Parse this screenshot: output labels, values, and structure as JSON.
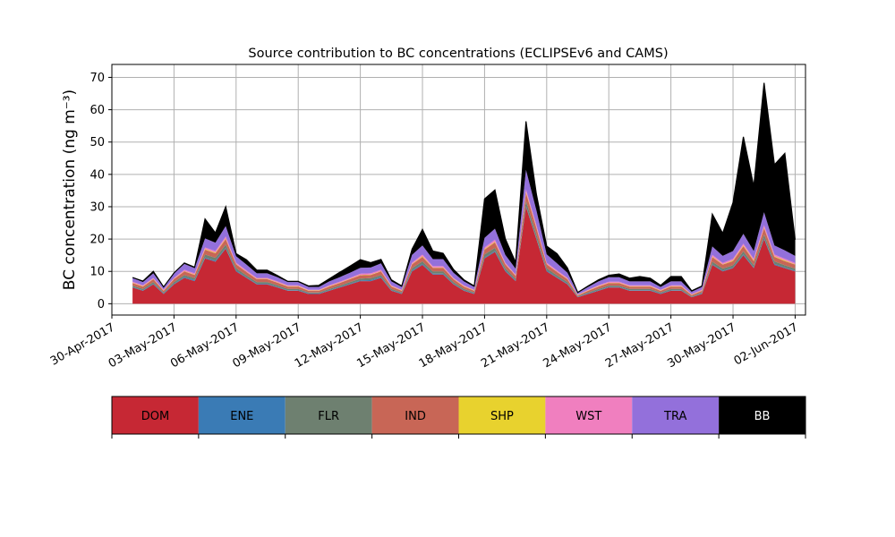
{
  "chart_data": {
    "type": "area",
    "title": "Source contribution to BC concentrations (ECLIPSEv6 and CAMS)",
    "ylabel": "BC concentration (ng m⁻³)",
    "xlabel": "",
    "ylim": [
      -3.5,
      74
    ],
    "xlim": [
      "2017-04-30T00:00",
      "2017-06-02T12:00"
    ],
    "grid": true,
    "stacked": true,
    "yticks": [
      0,
      10,
      20,
      30,
      40,
      50,
      60,
      70
    ],
    "xticks": [
      "30-Apr-2017",
      "03-May-2017",
      "06-May-2017",
      "09-May-2017",
      "12-May-2017",
      "15-May-2017",
      "18-May-2017",
      "21-May-2017",
      "24-May-2017",
      "27-May-2017",
      "30-May-2017",
      "02-Jun-2017"
    ],
    "x": [
      "2017-05-01T00:00",
      "2017-05-01T12:00",
      "2017-05-02T00:00",
      "2017-05-02T12:00",
      "2017-05-03T00:00",
      "2017-05-03T12:00",
      "2017-05-04T00:00",
      "2017-05-04T12:00",
      "2017-05-05T00:00",
      "2017-05-05T12:00",
      "2017-05-06T00:00",
      "2017-05-06T12:00",
      "2017-05-07T00:00",
      "2017-05-07T12:00",
      "2017-05-08T00:00",
      "2017-05-08T12:00",
      "2017-05-09T00:00",
      "2017-05-09T12:00",
      "2017-05-10T00:00",
      "2017-05-10T12:00",
      "2017-05-11T00:00",
      "2017-05-11T12:00",
      "2017-05-12T00:00",
      "2017-05-12T12:00",
      "2017-05-13T00:00",
      "2017-05-13T12:00",
      "2017-05-14T00:00",
      "2017-05-14T12:00",
      "2017-05-15T00:00",
      "2017-05-15T12:00",
      "2017-05-16T00:00",
      "2017-05-16T12:00",
      "2017-05-17T00:00",
      "2017-05-17T12:00",
      "2017-05-18T00:00",
      "2017-05-18T12:00",
      "2017-05-19T00:00",
      "2017-05-19T12:00",
      "2017-05-20T00:00",
      "2017-05-20T12:00",
      "2017-05-21T00:00",
      "2017-05-21T12:00",
      "2017-05-22T00:00",
      "2017-05-22T12:00",
      "2017-05-23T00:00",
      "2017-05-23T12:00",
      "2017-05-24T00:00",
      "2017-05-24T12:00",
      "2017-05-25T00:00",
      "2017-05-25T12:00",
      "2017-05-26T00:00",
      "2017-05-26T12:00",
      "2017-05-27T00:00",
      "2017-05-27T12:00",
      "2017-05-28T00:00",
      "2017-05-28T12:00",
      "2017-05-29T00:00",
      "2017-05-29T12:00",
      "2017-05-30T00:00",
      "2017-05-30T12:00",
      "2017-05-31T00:00",
      "2017-05-31T12:00",
      "2017-06-01T00:00",
      "2017-06-01T12:00",
      "2017-06-02T00:00"
    ],
    "series": [
      {
        "name": "DOM",
        "color": "#c62834",
        "values": [
          5,
          4,
          6,
          3,
          6,
          8,
          7,
          14,
          13,
          17,
          10,
          8,
          6,
          6,
          5,
          4,
          4,
          3,
          3,
          4,
          5,
          6,
          7,
          7,
          8,
          4,
          3,
          10,
          12,
          9,
          9,
          6,
          4,
          3,
          14,
          16,
          10,
          7,
          30,
          20,
          10,
          8,
          6,
          2,
          3,
          4,
          5,
          5,
          4,
          4,
          4,
          3,
          4,
          4,
          2,
          3,
          12,
          10,
          11,
          15,
          11,
          20,
          12,
          11,
          10
        ]
      },
      {
        "name": "ENE",
        "color": "#3a7bb5",
        "values": [
          0.2,
          0.2,
          0.2,
          0.2,
          0.2,
          0.3,
          0.3,
          0.3,
          0.3,
          0.3,
          0.3,
          0.2,
          0.2,
          0.2,
          0.2,
          0.2,
          0.2,
          0.2,
          0.2,
          0.2,
          0.2,
          0.2,
          0.2,
          0.3,
          0.3,
          0.2,
          0.2,
          0.3,
          0.3,
          0.3,
          0.3,
          0.2,
          0.2,
          0.2,
          0.3,
          0.3,
          0.3,
          0.2,
          0.3,
          0.3,
          0.3,
          0.2,
          0.2,
          0.1,
          0.2,
          0.2,
          0.2,
          0.2,
          0.2,
          0.2,
          0.2,
          0.2,
          0.2,
          0.2,
          0.1,
          0.2,
          0.2,
          0.2,
          0.2,
          0.3,
          0.2,
          0.3,
          0.3,
          0.2,
          0.2
        ]
      },
      {
        "name": "FLR",
        "color": "#6e8070",
        "values": [
          0.4,
          0.4,
          0.5,
          0.3,
          0.5,
          0.6,
          0.6,
          0.9,
          0.9,
          1.0,
          0.7,
          0.6,
          0.5,
          0.5,
          0.5,
          0.4,
          0.4,
          0.3,
          0.3,
          0.4,
          0.4,
          0.5,
          0.6,
          0.6,
          0.6,
          0.4,
          0.3,
          0.7,
          0.8,
          0.7,
          0.7,
          0.5,
          0.4,
          0.3,
          0.9,
          1.0,
          0.7,
          0.5,
          1.5,
          1.2,
          0.7,
          0.6,
          0.5,
          0.2,
          0.3,
          0.4,
          0.4,
          0.4,
          0.4,
          0.4,
          0.4,
          0.3,
          0.4,
          0.4,
          0.2,
          0.3,
          0.8,
          0.7,
          0.7,
          0.9,
          0.7,
          1.1,
          0.8,
          0.7,
          0.7
        ]
      },
      {
        "name": "IND",
        "color": "#c86656",
        "values": [
          0.8,
          0.7,
          0.9,
          0.5,
          0.9,
          1.1,
          1.0,
          1.5,
          1.4,
          1.7,
          1.2,
          1.0,
          0.9,
          0.9,
          0.8,
          0.7,
          0.7,
          0.5,
          0.5,
          0.7,
          0.8,
          0.9,
          1.0,
          1.0,
          1.1,
          0.7,
          0.5,
          1.2,
          1.4,
          1.1,
          1.1,
          0.9,
          0.7,
          0.5,
          1.5,
          1.7,
          1.2,
          0.9,
          2.5,
          2.0,
          1.2,
          1.0,
          0.9,
          0.3,
          0.5,
          0.7,
          0.8,
          0.8,
          0.7,
          0.7,
          0.7,
          0.5,
          0.7,
          0.7,
          0.4,
          0.5,
          1.4,
          1.2,
          1.3,
          1.6,
          1.3,
          2.0,
          1.4,
          1.3,
          1.2
        ]
      },
      {
        "name": "SHP",
        "color": "#e8d22e",
        "values": [
          0.1,
          0.1,
          0.1,
          0.1,
          0.1,
          0.1,
          0.1,
          0.2,
          0.2,
          0.2,
          0.1,
          0.1,
          0.1,
          0.1,
          0.1,
          0.1,
          0.1,
          0.1,
          0.1,
          0.1,
          0.1,
          0.1,
          0.1,
          0.1,
          0.1,
          0.1,
          0.1,
          0.1,
          0.2,
          0.1,
          0.1,
          0.1,
          0.1,
          0.1,
          0.2,
          0.2,
          0.1,
          0.1,
          0.3,
          0.2,
          0.1,
          0.1,
          0.1,
          0.1,
          0.1,
          0.1,
          0.1,
          0.1,
          0.1,
          0.1,
          0.1,
          0.1,
          0.1,
          0.1,
          0.1,
          0.1,
          0.2,
          0.1,
          0.2,
          0.2,
          0.2,
          0.2,
          0.2,
          0.2,
          0.1
        ]
      },
      {
        "name": "WST",
        "color": "#f07fbf",
        "values": [
          0.3,
          0.3,
          0.3,
          0.2,
          0.3,
          0.4,
          0.4,
          0.5,
          0.5,
          0.6,
          0.4,
          0.4,
          0.3,
          0.3,
          0.3,
          0.3,
          0.3,
          0.2,
          0.2,
          0.3,
          0.3,
          0.3,
          0.4,
          0.4,
          0.4,
          0.3,
          0.2,
          0.4,
          0.5,
          0.4,
          0.4,
          0.3,
          0.3,
          0.2,
          0.5,
          0.6,
          0.4,
          0.3,
          0.8,
          0.7,
          0.4,
          0.4,
          0.3,
          0.1,
          0.2,
          0.3,
          0.3,
          0.3,
          0.3,
          0.3,
          0.3,
          0.2,
          0.3,
          0.3,
          0.2,
          0.2,
          0.5,
          0.4,
          0.5,
          0.6,
          0.5,
          0.7,
          0.5,
          0.5,
          0.4
        ]
      },
      {
        "name": "TRA",
        "color": "#9370db",
        "values": [
          1.2,
          1.0,
          1.4,
          0.8,
          1.4,
          1.8,
          1.6,
          2.8,
          2.6,
          3.2,
          2.0,
          1.8,
          1.4,
          1.4,
          1.3,
          1.0,
          1.0,
          0.9,
          0.9,
          1.2,
          1.4,
          1.6,
          1.8,
          1.8,
          2.0,
          1.2,
          0.9,
          2.4,
          2.8,
          2.2,
          2.2,
          1.6,
          1.2,
          0.9,
          3.0,
          3.4,
          2.4,
          1.8,
          6.0,
          4.5,
          2.6,
          2.2,
          1.6,
          0.5,
          0.9,
          1.2,
          1.4,
          1.4,
          1.2,
          1.2,
          1.2,
          0.9,
          1.2,
          1.2,
          0.7,
          0.9,
          2.6,
          2.2,
          2.4,
          3.0,
          2.4,
          4.0,
          2.8,
          2.6,
          2.2
        ]
      },
      {
        "name": "BB",
        "color": "#000000",
        "values": [
          0.1,
          0.3,
          0.6,
          0.1,
          0.1,
          0.3,
          0.3,
          6.0,
          3.0,
          6.0,
          0.8,
          1.5,
          1.0,
          1.0,
          0.5,
          0.2,
          0.2,
          0.3,
          0.5,
          0.8,
          1.5,
          2.0,
          2.5,
          1.5,
          1.2,
          0.5,
          0.3,
          1.8,
          5.0,
          2.5,
          1.8,
          1.0,
          0.5,
          0.3,
          12.0,
          12.0,
          5.0,
          2.0,
          15.0,
          5.0,
          2.5,
          3.0,
          1.5,
          0.2,
          0.3,
          0.5,
          0.6,
          1.0,
          1.0,
          1.5,
          1.0,
          0.5,
          1.5,
          1.5,
          0.3,
          0.3,
          10.0,
          7.0,
          15.0,
          30.0,
          20.0,
          40.0,
          25.0,
          30.0,
          5.0
        ]
      }
    ]
  }
}
